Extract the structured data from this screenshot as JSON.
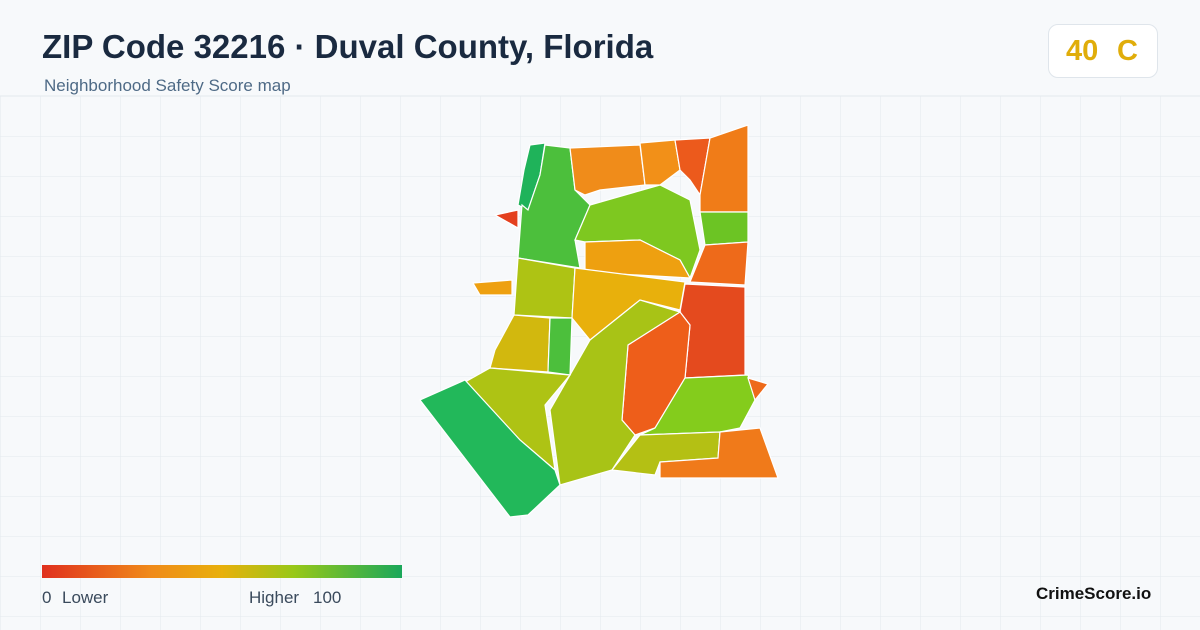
{
  "header": {
    "title": "ZIP Code 32216 · Duval County, Florida",
    "subtitle": "Neighborhood Safety Score map"
  },
  "score_badge": {
    "score": "40",
    "grade": "C"
  },
  "legend": {
    "min": "0",
    "min_label": "Lower",
    "max_label": "Higher",
    "max": "100"
  },
  "brand": "CrimeScore.io"
}
